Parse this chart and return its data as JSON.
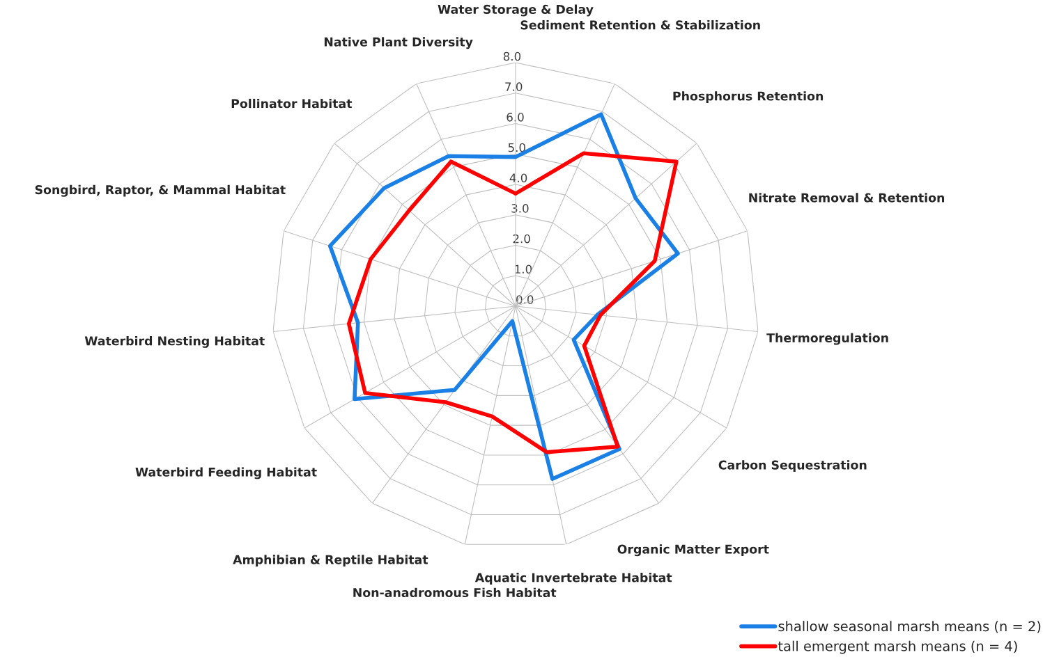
{
  "chart_data": {
    "type": "radar",
    "categories": [
      "Water Storage & Delay",
      "Sediment Retention & Stabilization",
      "Phosphorus Retention",
      "Nitrate Removal & Retention",
      "Thermoregulation",
      "Carbon Sequestration",
      "Organic Matter Export",
      "Aquatic Invertebrate Habitat",
      "Non-anadromous Fish Habitat",
      "Amphibian & Reptile Habitat",
      "Waterbird Feeding Habitat",
      "Waterbird Nesting Habitat",
      "Songbird, Raptor, & Mammal Habitat",
      "Pollinator Habitat",
      "Native Plant Diversity"
    ],
    "series": [
      {
        "name": "shallow seasonal marsh means (n = 2)",
        "color": "#1a80e6",
        "values": [
          4.9,
          6.9,
          5.3,
          5.6,
          2.7,
          2.2,
          5.8,
          5.8,
          0.5,
          3.4,
          6.1,
          5.2,
          6.4,
          5.8,
          5.4
        ]
      },
      {
        "name": "tall emergent marsh means (n = 4)",
        "color": "#ff0000",
        "values": [
          3.7,
          5.5,
          7.1,
          4.8,
          2.8,
          2.6,
          5.7,
          4.9,
          3.7,
          3.9,
          5.7,
          5.5,
          5.0,
          4.7,
          5.2
        ]
      }
    ],
    "ylim": [
      0,
      8
    ],
    "yticks": [
      {
        "value": 0,
        "label": "0.0"
      },
      {
        "value": 1,
        "label": "1.0"
      },
      {
        "value": 2,
        "label": "2.0"
      },
      {
        "value": 3,
        "label": "3.0"
      },
      {
        "value": 4,
        "label": "4.0"
      },
      {
        "value": 5,
        "label": "5.0"
      },
      {
        "value": 6,
        "label": "6.0"
      },
      {
        "value": 7,
        "label": "7.0"
      },
      {
        "value": 8,
        "label": "8.0"
      }
    ],
    "grid": true,
    "legend": "bottom right",
    "line_style": "solid",
    "marker": "none"
  }
}
